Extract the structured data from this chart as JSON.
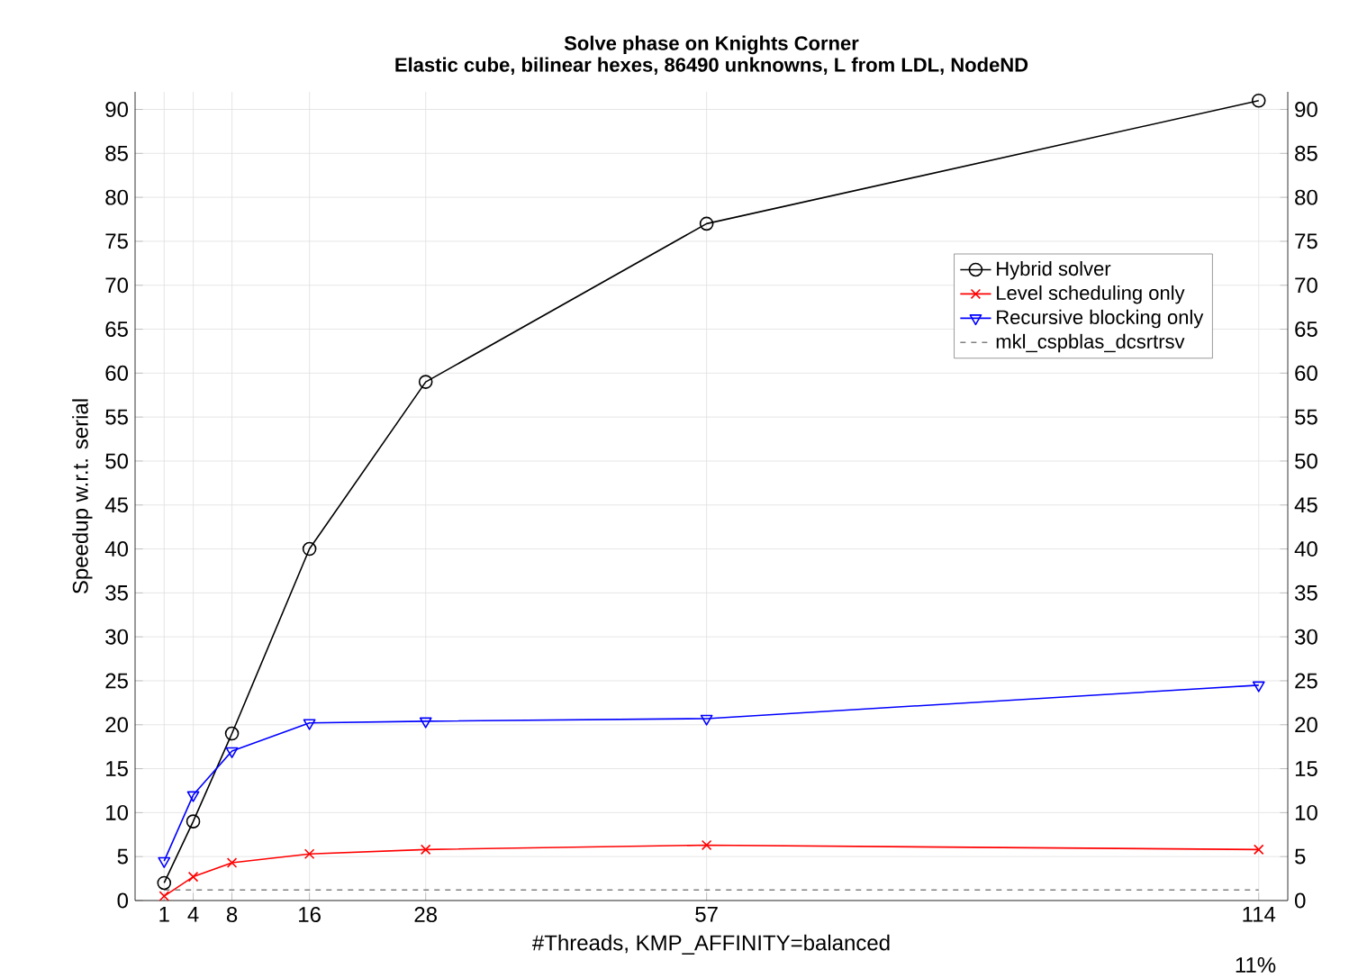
{
  "chart_data": {
    "type": "line",
    "title": "Solve phase on Knights Corner",
    "subtitle": "Elastic cube, bilinear hexes, 86490 unknowns, L from LDL, NodeND",
    "xlabel": "#Threads, KMP_AFFINITY=balanced",
    "ylabel": "Speedup w.r.t. serial",
    "annotations": [
      "11%"
    ],
    "x": [
      1,
      4,
      8,
      16,
      28,
      57,
      114
    ],
    "xlim": [
      -2,
      117
    ],
    "xticks": [
      1,
      4,
      8,
      16,
      28,
      57,
      114
    ],
    "ylim": [
      0,
      92
    ],
    "yticks": [
      0,
      5,
      10,
      15,
      20,
      25,
      30,
      35,
      40,
      45,
      50,
      55,
      60,
      65,
      70,
      75,
      80,
      85,
      90
    ],
    "y2lim": [
      0,
      92
    ],
    "y2ticks": [
      0,
      5,
      10,
      15,
      20,
      25,
      30,
      35,
      40,
      45,
      50,
      55,
      60,
      65,
      70,
      75,
      80,
      85,
      90
    ],
    "grid": true,
    "legend": "right",
    "line_style": "solid",
    "series": [
      {
        "name": "Hybrid solver",
        "color": "#000000",
        "marker": "circle",
        "values": [
          2,
          9,
          19,
          40,
          59,
          77,
          91
        ]
      },
      {
        "name": "Level scheduling only",
        "color": "#ff0000",
        "marker": "cross",
        "values": [
          0.5,
          2.7,
          4.3,
          5.3,
          5.8,
          6.3,
          5.8
        ]
      },
      {
        "name": "Recursive blocking only",
        "color": "#0000ff",
        "marker": "triangle",
        "values": [
          4.5,
          12,
          17,
          20.2,
          20.4,
          20.7,
          24.5
        ]
      },
      {
        "name": "mkl_cspblas_dcsrtrsv",
        "color": "#808080",
        "marker": "none",
        "line_style": "dashed",
        "values": [
          1.2,
          1.2,
          1.2,
          1.2,
          1.2,
          1.2,
          1.2
        ]
      }
    ]
  }
}
